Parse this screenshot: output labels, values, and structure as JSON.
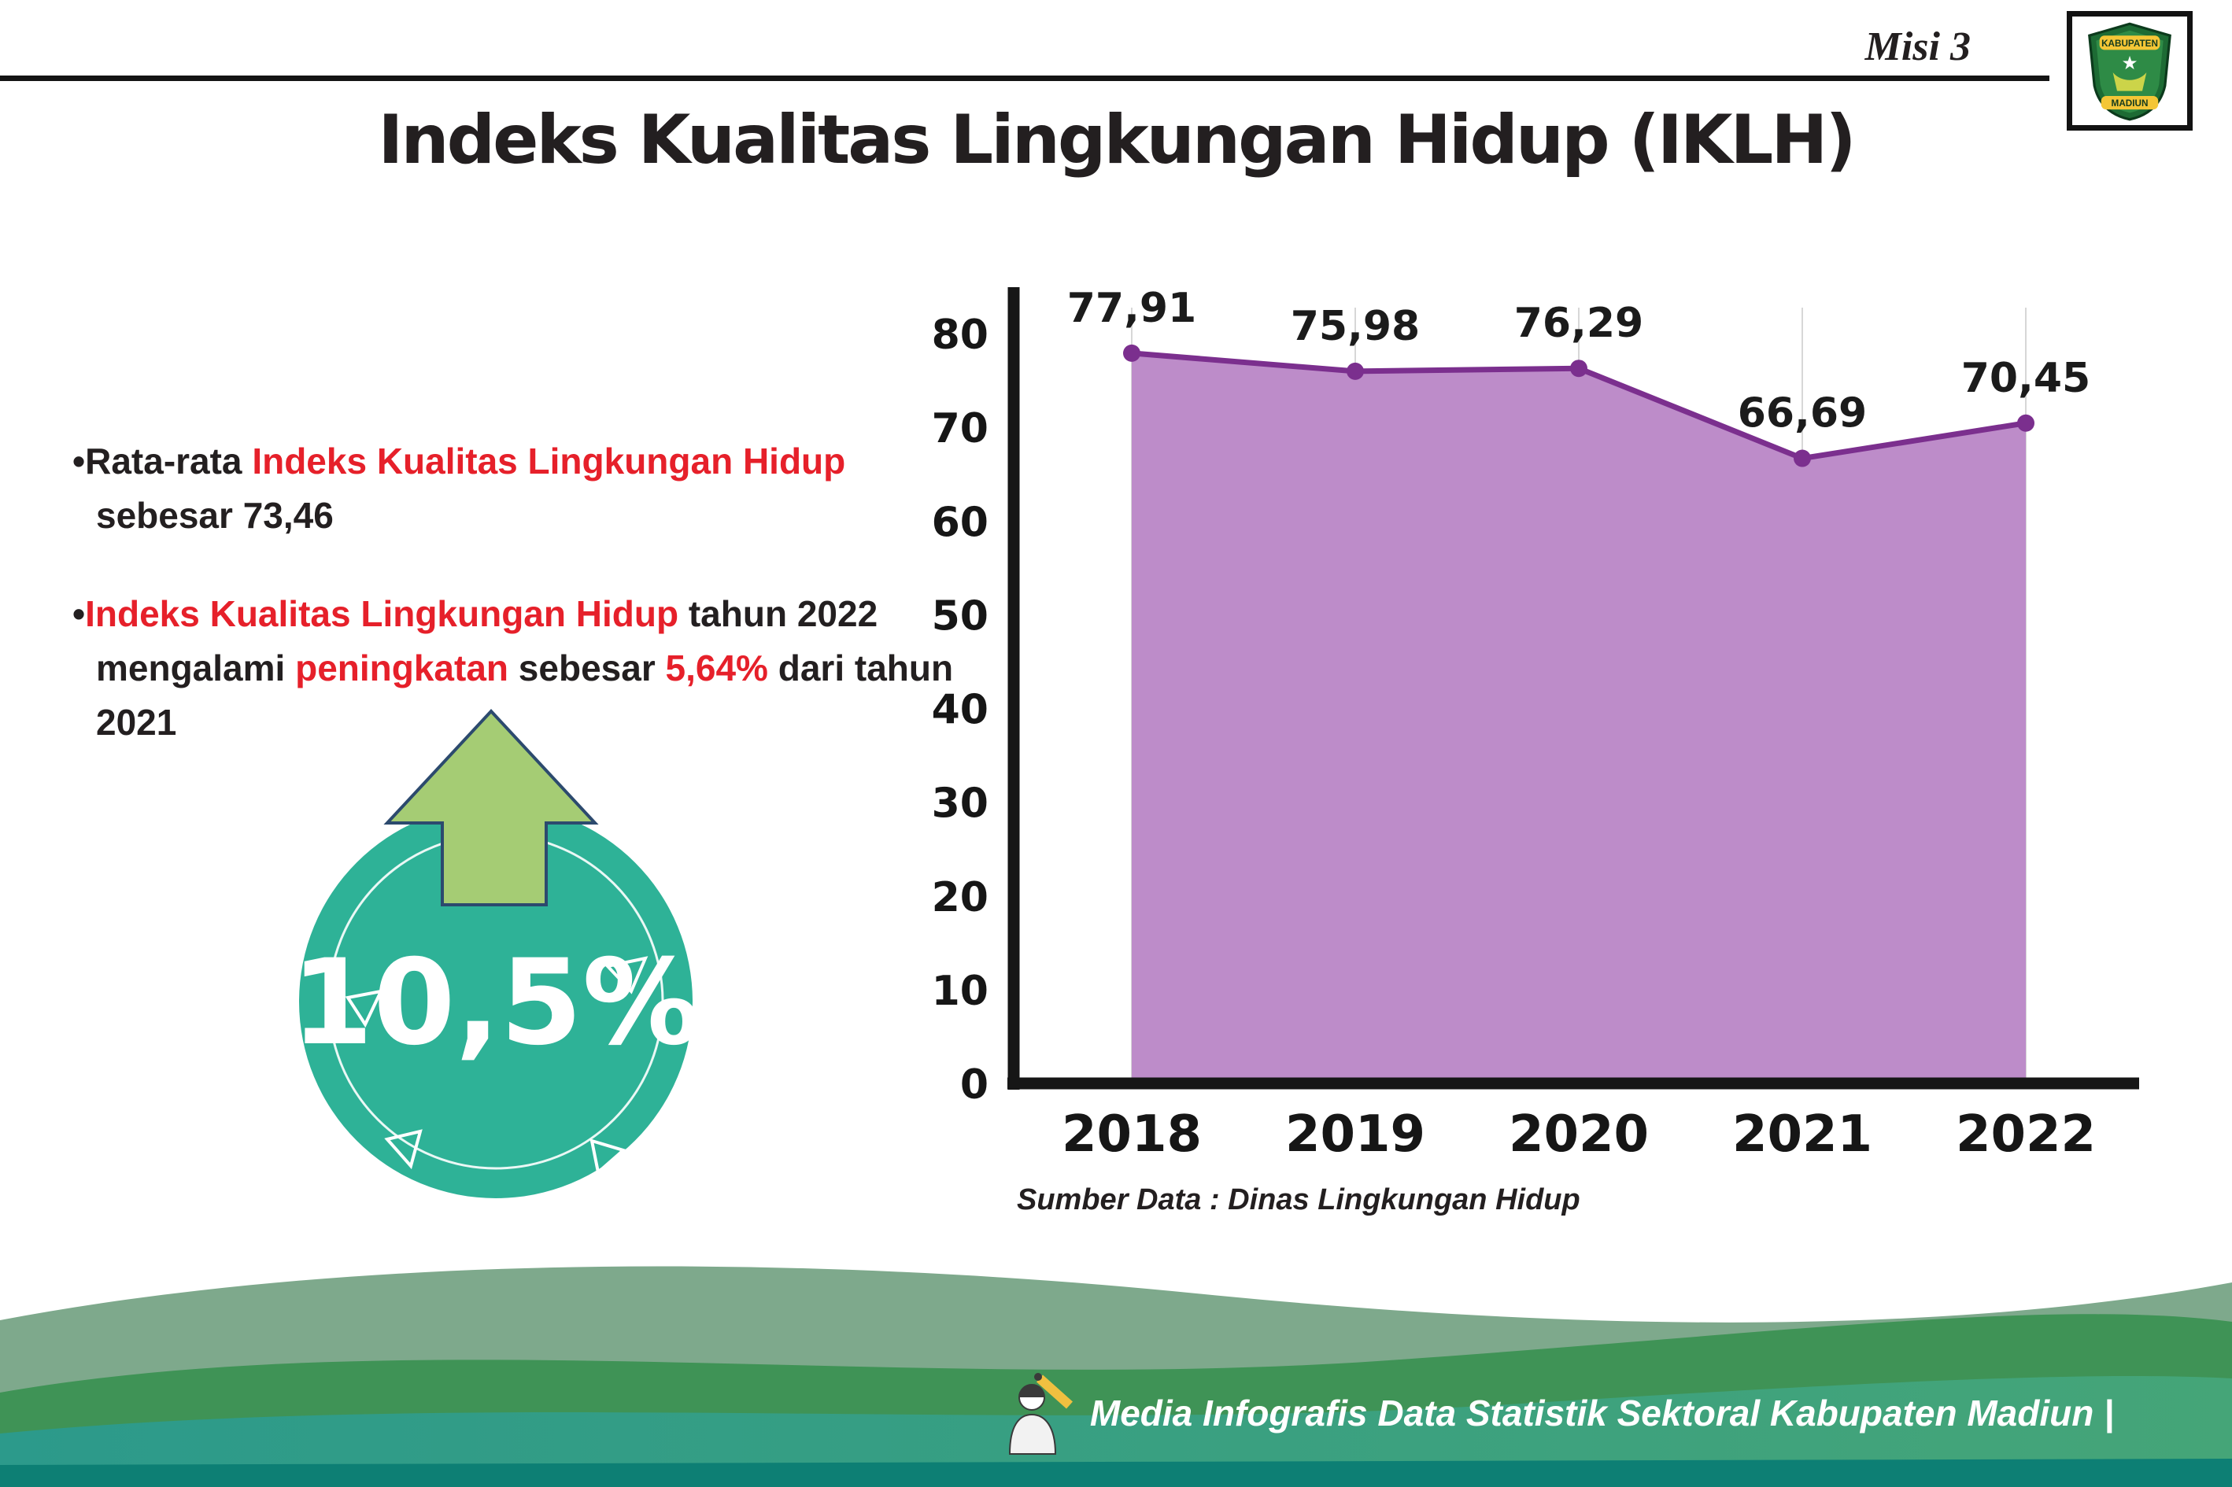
{
  "header": {
    "misi_label": "Misi 3",
    "title": "Indeks Kualitas Lingkungan Hidup (IKLH)"
  },
  "logo": {
    "top_text": "KABUPATEN",
    "bottom_text": "MADIUN"
  },
  "bullets": [
    {
      "segments": [
        {
          "text": "Rata-rata ",
          "color": "black"
        },
        {
          "text": "Indeks Kualitas Lingkungan Hidup",
          "color": "red"
        },
        {
          "text": " sebesar 73,46",
          "color": "black"
        }
      ]
    },
    {
      "segments": [
        {
          "text": "Indeks Kualitas Lingkungan Hidup",
          "color": "red"
        },
        {
          "text": " tahun 2022 mengalami ",
          "color": "black"
        },
        {
          "text": "peningkatan",
          "color": "red"
        },
        {
          "text": " sebesar ",
          "color": "black"
        },
        {
          "text": "5,64%",
          "color": "red"
        },
        {
          "text": " dari tahun 2021",
          "color": "black"
        }
      ]
    }
  ],
  "badge": {
    "value": "10,5%",
    "circle_color": "#2eb297",
    "arrow_color": "#a5cc74",
    "arrow_outline": "#2c4a6e"
  },
  "chart_data": {
    "type": "area",
    "categories": [
      "2018",
      "2019",
      "2020",
      "2021",
      "2022"
    ],
    "values": [
      77.91,
      75.98,
      76.29,
      66.69,
      70.45
    ],
    "labels": [
      "77,91",
      "75,98",
      "76,29",
      "66,69",
      "70,45"
    ],
    "title": "",
    "xlabel": "",
    "ylabel": "",
    "ylim": [
      0,
      80
    ],
    "ytick_step": 10,
    "grid": "vertical-light",
    "legend": "none",
    "colors": {
      "area": "#bd8cc9",
      "line": "#7b2f8e",
      "point": "#7b2f8e"
    },
    "source": "Sumber Data : Dinas Lingkungan Hidup"
  },
  "footer": {
    "text": "Media Infografis Data Statistik Sektoral Kabupaten Madiun |"
  },
  "text_colors": {
    "red": "#e6202a",
    "black": "#231f20"
  }
}
